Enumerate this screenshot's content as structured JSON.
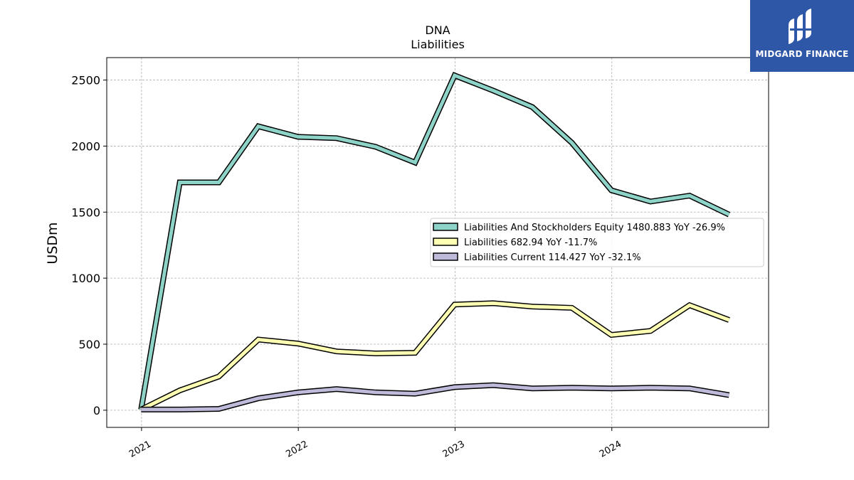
{
  "chart_data": {
    "type": "line",
    "title": "DNA",
    "subtitle": "Liabilities",
    "xlabel": "",
    "ylabel": "USDm",
    "xlim": [
      "2020-10-12",
      "2024-12-31"
    ],
    "ylim": [
      -130,
      2670
    ],
    "x_ticks": [
      "2021",
      "2022",
      "2023",
      "2024"
    ],
    "y_ticks": [
      0,
      500,
      1000,
      1500,
      2000,
      2500
    ],
    "grid": true,
    "legend_position": "center-right",
    "x": [
      "2020-12-31",
      "2021-03-31",
      "2021-06-30",
      "2021-09-30",
      "2021-12-31",
      "2022-03-31",
      "2022-06-30",
      "2022-09-30",
      "2022-12-31",
      "2023-03-31",
      "2023-06-30",
      "2023-09-30",
      "2023-12-31",
      "2024-03-31",
      "2024-06-30",
      "2024-09-30"
    ],
    "series": [
      {
        "name": "Liabilities And Stockholders Equity",
        "legend_label": "Liabilities And Stockholders Equity  1480.883 YoY -26.9%",
        "color": "#8dd3c7",
        "values": [
          5,
          1725,
          1725,
          2150,
          2070,
          2060,
          1995,
          1875,
          2535,
          2420,
          2295,
          2025,
          1665,
          1580,
          1625,
          1480.883
        ]
      },
      {
        "name": "Liabilities",
        "legend_label": "Liabilities  682.94 YoY -11.7%",
        "color": "#ffffb3",
        "values": [
          5,
          150,
          255,
          535,
          505,
          445,
          430,
          435,
          800,
          810,
          785,
          775,
          570,
          600,
          795,
          682.94
        ]
      },
      {
        "name": "Liabilities Current",
        "legend_label": "Liabilities Current  114.427 YoY -32.1%",
        "color": "#bebada",
        "values": [
          5,
          5,
          10,
          90,
          135,
          160,
          135,
          125,
          175,
          190,
          165,
          170,
          165,
          170,
          165,
          114.427
        ]
      }
    ]
  },
  "branding": {
    "logo_text": "MIDGARD FINANCE",
    "logo_color": "#2f57a8"
  }
}
